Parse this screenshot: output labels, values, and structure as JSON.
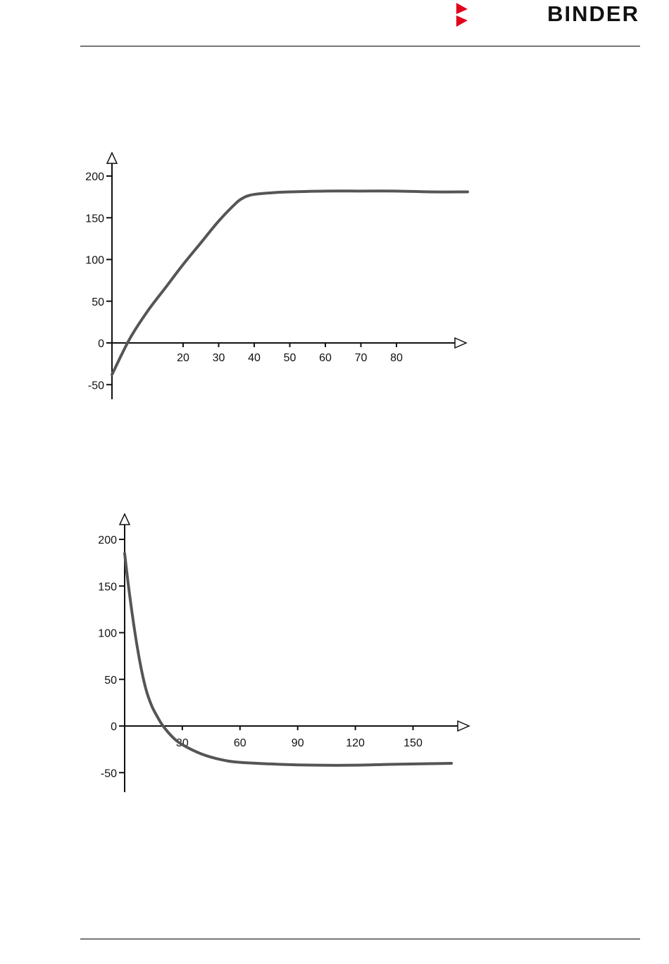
{
  "header": {
    "brand_name": "BINDER",
    "brand_colors": {
      "mark": "#e3001b",
      "text": "#111111"
    }
  },
  "chart_data": [
    {
      "type": "line",
      "title": "",
      "xlabel": "",
      "ylabel": "",
      "xlim": [
        0,
        100
      ],
      "ylim": [
        -75,
        200
      ],
      "x_ticks": [
        20,
        30,
        40,
        50,
        60,
        70,
        80
      ],
      "y_ticks": [
        200,
        150,
        100,
        50,
        0,
        -50
      ],
      "grid": false,
      "series": [
        {
          "color": "#555555",
          "x": [
            0,
            5,
            10,
            15,
            20,
            25,
            30,
            35,
            37,
            38,
            40,
            45,
            50,
            60,
            70,
            80,
            90,
            100
          ],
          "y": [
            -38,
            5,
            38,
            66,
            94,
            120,
            146,
            168,
            174,
            176,
            178,
            180,
            181,
            182,
            182,
            182,
            181,
            181
          ]
        }
      ]
    },
    {
      "type": "line",
      "title": "",
      "xlabel": "",
      "ylabel": "",
      "xlim": [
        0,
        180
      ],
      "ylim": [
        -75,
        200
      ],
      "x_ticks": [
        30,
        60,
        90,
        120,
        150
      ],
      "y_ticks": [
        200,
        150,
        100,
        50,
        0,
        -50
      ],
      "grid": false,
      "series": [
        {
          "color": "#555555",
          "x": [
            0,
            2,
            5,
            8,
            11,
            14,
            17,
            20,
            25,
            30,
            40,
            50,
            60,
            80,
            100,
            120,
            140,
            170
          ],
          "y": [
            185,
            150,
            105,
            68,
            40,
            22,
            10,
            0,
            -12,
            -20,
            -30,
            -36,
            -39,
            -41,
            -42,
            -42,
            -41,
            -40
          ]
        }
      ]
    }
  ]
}
